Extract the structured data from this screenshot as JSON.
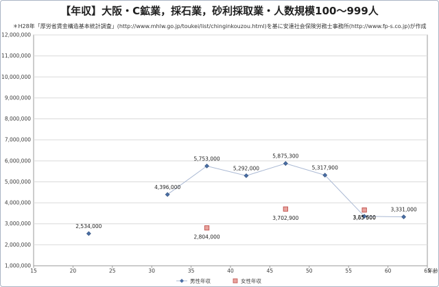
{
  "chart_data": {
    "type": "scatter",
    "title": "【年収】大阪・C鉱業，採石業，砂利採取業・人数規模100～999人",
    "subtitle": "＊H28年「厚労省賃金構造基本統計調査」(http://www.mhlw.go.jp/toukei/list/chinginkouzou.html)を基に安達社会保険労務士事務所(http://www.fp-s.co.jp)が作成",
    "xlabel": "年齢",
    "ylabel": "",
    "xlim": [
      15,
      65
    ],
    "ylim": [
      1000000,
      12000000
    ],
    "xticks": [
      15,
      20,
      25,
      30,
      35,
      40,
      45,
      50,
      55,
      60,
      65
    ],
    "yticks": [
      1000000,
      2000000,
      3000000,
      4000000,
      5000000,
      6000000,
      7000000,
      8000000,
      9000000,
      10000000,
      11000000,
      12000000
    ],
    "grid": true,
    "legend_position": "bottom",
    "series": [
      {
        "name": "男性年収",
        "color": "#4a6fa5",
        "marker": "diamond",
        "points": [
          {
            "x": 22,
            "y": 2534000,
            "label": "2,534,000"
          },
          {
            "x": 32,
            "y": 4396000,
            "label": "4,396,000"
          },
          {
            "x": 37,
            "y": 5753000,
            "label": "5,753,000"
          },
          {
            "x": 42,
            "y": 5292000,
            "label": "5,292,000"
          },
          {
            "x": 47,
            "y": 5875300,
            "label": "5,875,300"
          },
          {
            "x": 52,
            "y": 5317900,
            "label": "5,317,900"
          },
          {
            "x": 57,
            "y": 3356600,
            "label": "3,35 600"
          },
          {
            "x": 62,
            "y": 3331000,
            "label": "3,331,000"
          }
        ],
        "line_segments": [
          [
            1,
            7
          ]
        ]
      },
      {
        "name": "女性年収",
        "color": "#c0504d",
        "fill": "#e8a39d",
        "marker": "square",
        "points": [
          {
            "x": 37,
            "y": 2804000,
            "label": "2,804,000"
          },
          {
            "x": 47,
            "y": 3702900,
            "label": "3,702,900"
          },
          {
            "x": 57,
            "y": 3657500,
            "label": "3,65  500"
          }
        ]
      }
    ]
  }
}
